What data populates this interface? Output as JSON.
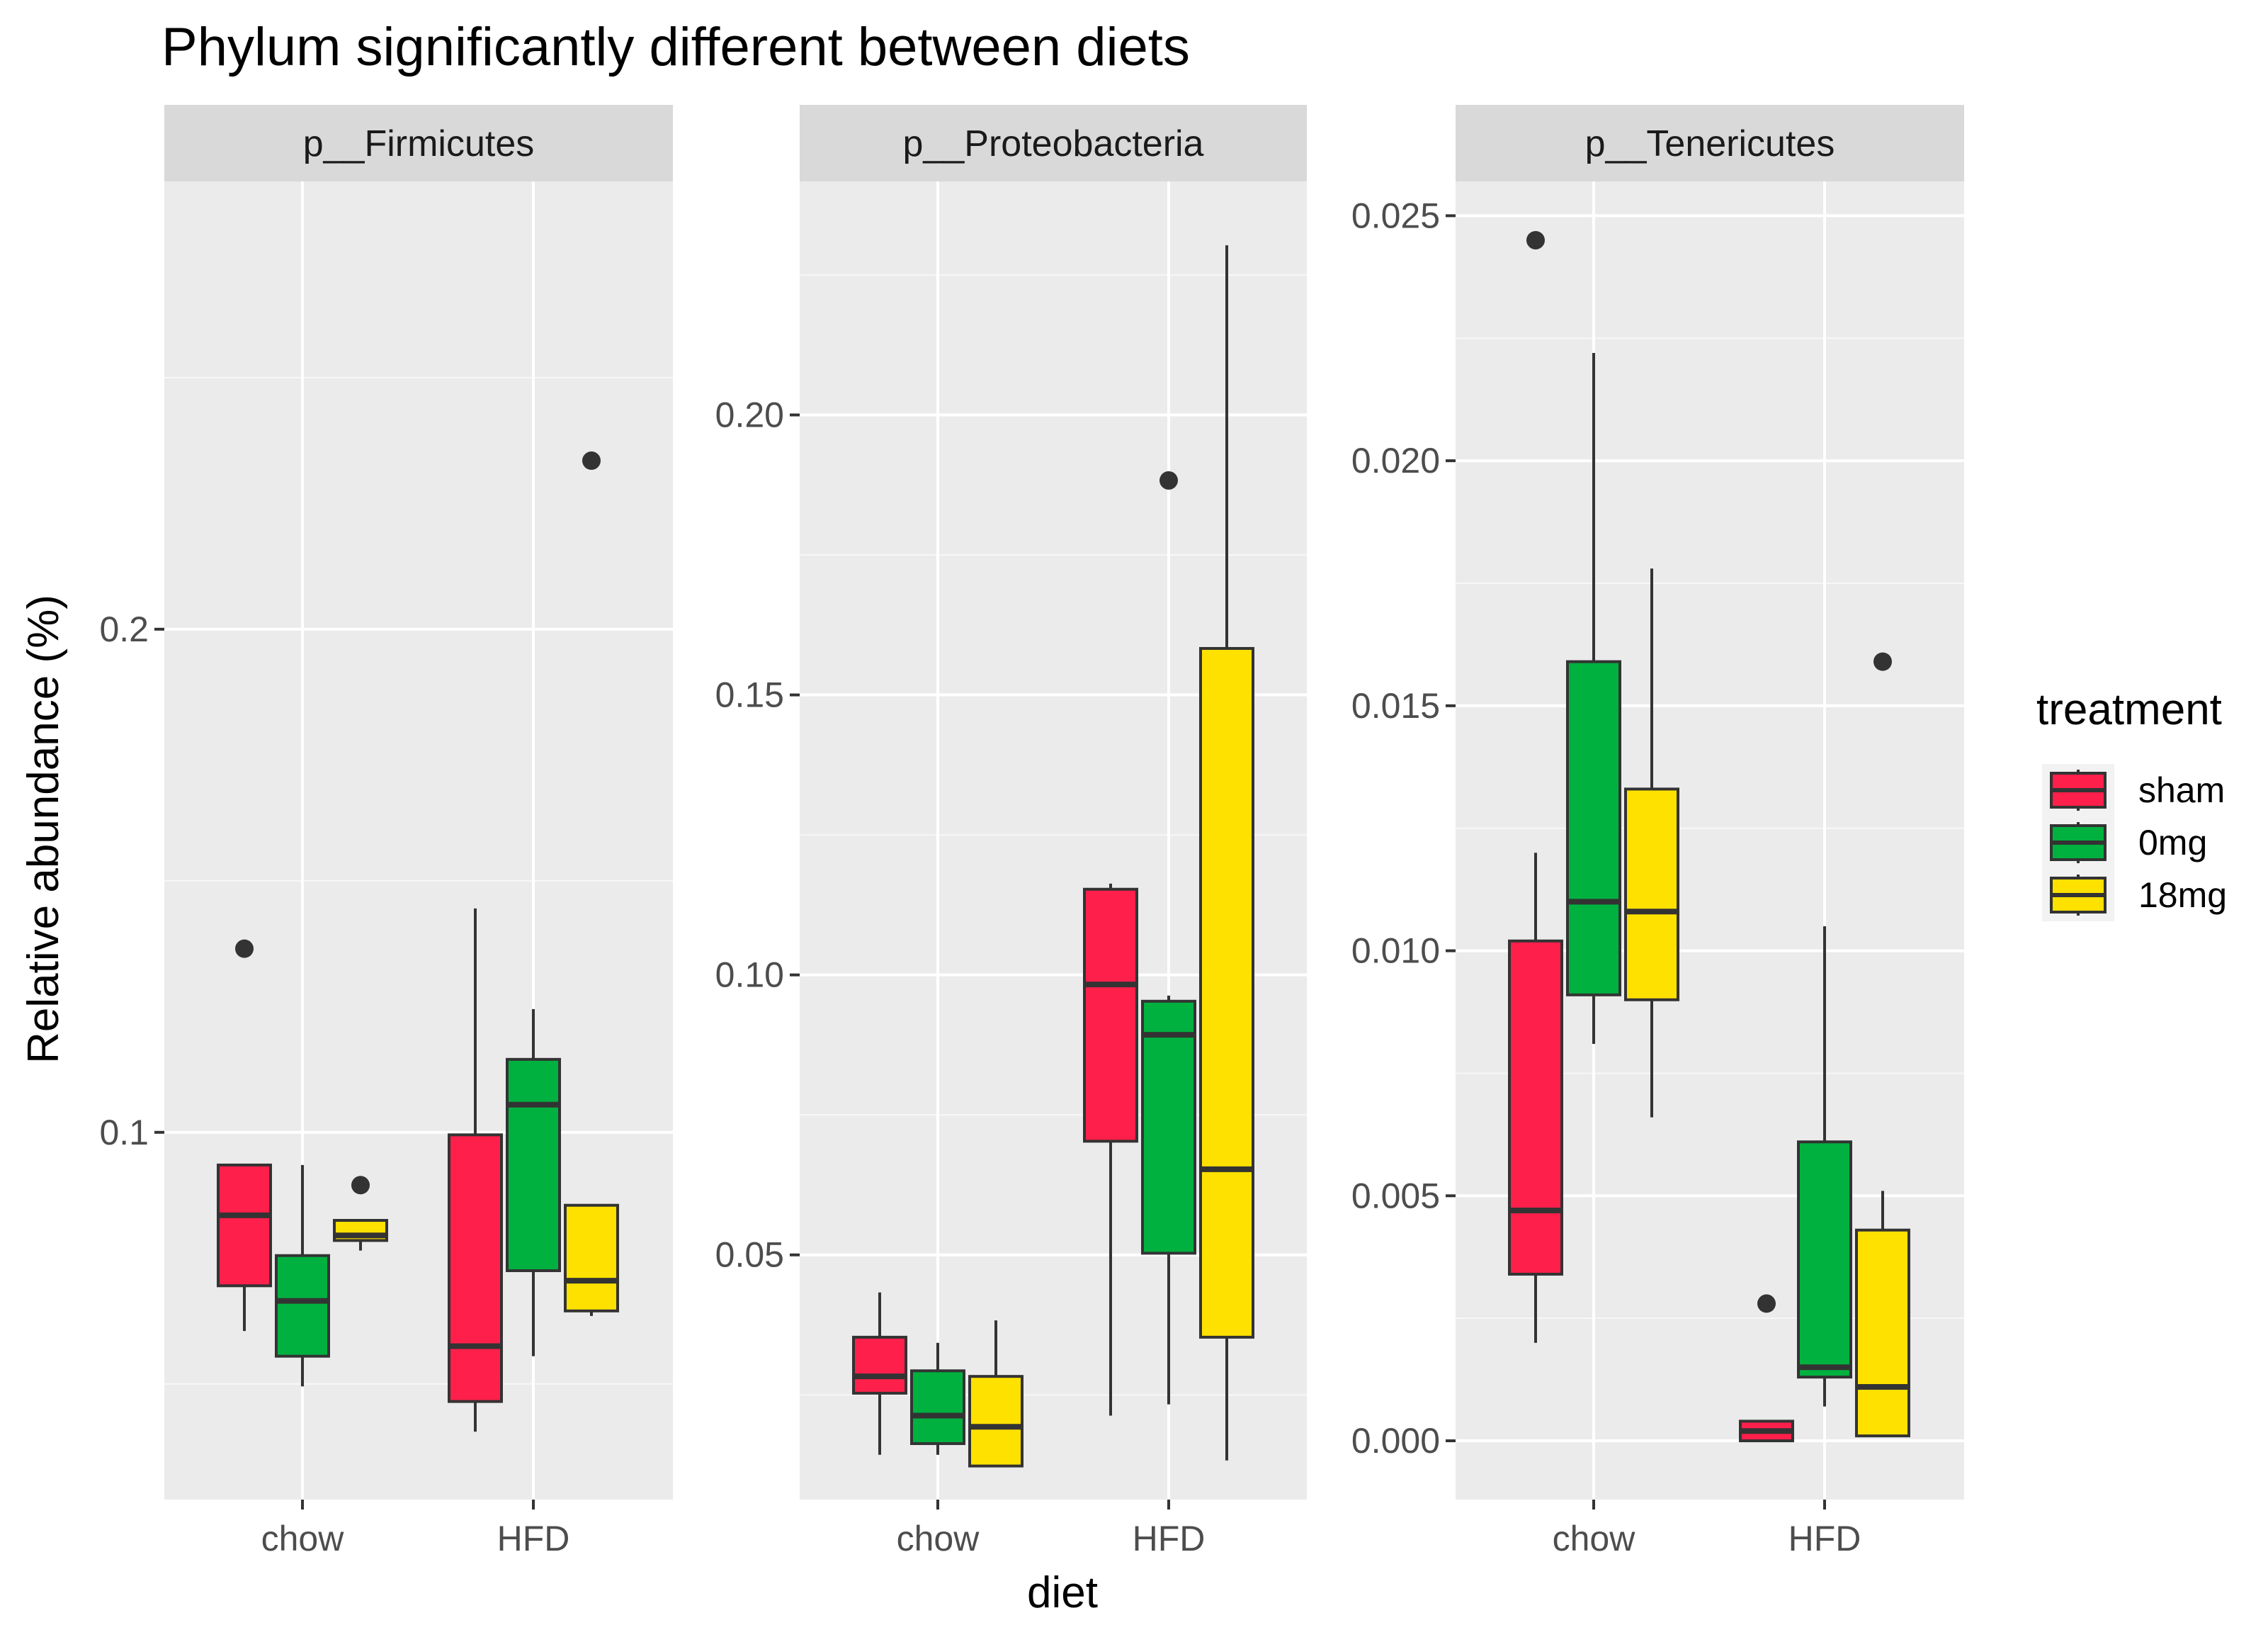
{
  "chart_data": {
    "type": "boxplot",
    "title": "Phylum significantly different between diets",
    "xlabel": "diet",
    "ylabel": "Relative abundance (%)",
    "categories": [
      "chow",
      "HFD"
    ],
    "legend": {
      "title": "treatment",
      "position": "right",
      "items": [
        {
          "name": "sham",
          "color": "#FF1F4B"
        },
        {
          "name": "0mg",
          "color": "#00B140"
        },
        {
          "name": "18mg",
          "color": "#FFE100"
        }
      ]
    },
    "panels": [
      {
        "strip": "p__Firmicutes",
        "ylim": [
          0.027,
          0.289
        ],
        "ticks": [
          {
            "value": 0.1,
            "label": "0.1"
          },
          {
            "value": 0.2,
            "label": "0.2"
          }
        ],
        "minor_ticks": [
          0.05,
          0.15,
          0.25
        ],
        "groups": [
          {
            "category": "chow",
            "treatment": "sham",
            "min": 0.0605,
            "q1": 0.0695,
            "median": 0.0835,
            "q3": 0.0935,
            "max": 0.0935,
            "outliers": [
              0.1365
            ]
          },
          {
            "category": "chow",
            "treatment": "0mg",
            "min": 0.0495,
            "q1": 0.0555,
            "median": 0.0665,
            "q3": 0.0755,
            "max": 0.0935,
            "outliers": []
          },
          {
            "category": "chow",
            "treatment": "18mg",
            "min": 0.0765,
            "q1": 0.0785,
            "median": 0.0795,
            "q3": 0.0825,
            "max": 0.0825,
            "outliers": [
              0.0895
            ]
          },
          {
            "category": "HFD",
            "treatment": "sham",
            "min": 0.0405,
            "q1": 0.0465,
            "median": 0.0575,
            "q3": 0.0995,
            "max": 0.1445,
            "outliers": []
          },
          {
            "category": "HFD",
            "treatment": "0mg",
            "min": 0.0555,
            "q1": 0.0725,
            "median": 0.1055,
            "q3": 0.1145,
            "max": 0.1245,
            "outliers": []
          },
          {
            "category": "HFD",
            "treatment": "18mg",
            "min": 0.0635,
            "q1": 0.0645,
            "median": 0.0705,
            "q3": 0.0855,
            "max": 0.0855,
            "outliers": [
              0.2335
            ]
          }
        ]
      },
      {
        "strip": "p__Proteobacteria",
        "ylim": [
          0.0063,
          0.2417
        ],
        "ticks": [
          {
            "value": 0.05,
            "label": "0.05"
          },
          {
            "value": 0.1,
            "label": "0.10"
          },
          {
            "value": 0.15,
            "label": "0.15"
          },
          {
            "value": 0.2,
            "label": "0.20"
          }
        ],
        "minor_ticks": [
          0.025,
          0.075,
          0.125,
          0.175,
          0.225
        ],
        "groups": [
          {
            "category": "chow",
            "treatment": "sham",
            "min": 0.0143,
            "q1": 0.0253,
            "median": 0.0283,
            "q3": 0.0353,
            "max": 0.0433,
            "outliers": []
          },
          {
            "category": "chow",
            "treatment": "0mg",
            "min": 0.0143,
            "q1": 0.0163,
            "median": 0.0213,
            "q3": 0.0293,
            "max": 0.0343,
            "outliers": []
          },
          {
            "category": "chow",
            "treatment": "18mg",
            "min": 0.0123,
            "q1": 0.0123,
            "median": 0.0193,
            "q3": 0.0283,
            "max": 0.0383,
            "outliers": []
          },
          {
            "category": "HFD",
            "treatment": "sham",
            "min": 0.0213,
            "q1": 0.0703,
            "median": 0.0983,
            "q3": 0.1153,
            "max": 0.1163,
            "outliers": []
          },
          {
            "category": "HFD",
            "treatment": "0mg",
            "min": 0.0233,
            "q1": 0.0503,
            "median": 0.0893,
            "q3": 0.0953,
            "max": 0.0963,
            "outliers": [
              0.1883
            ]
          },
          {
            "category": "HFD",
            "treatment": "18mg",
            "min": 0.0133,
            "q1": 0.0353,
            "median": 0.0653,
            "q3": 0.1583,
            "max": 0.2303,
            "outliers": []
          }
        ]
      },
      {
        "strip": "p__Tenericutes",
        "ylim": [
          -0.0012,
          0.0257
        ],
        "ticks": [
          {
            "value": 0.0,
            "label": "0.000"
          },
          {
            "value": 0.005,
            "label": "0.005"
          },
          {
            "value": 0.01,
            "label": "0.010"
          },
          {
            "value": 0.015,
            "label": "0.015"
          },
          {
            "value": 0.02,
            "label": "0.020"
          },
          {
            "value": 0.025,
            "label": "0.025"
          }
        ],
        "minor_ticks": [
          0.0025,
          0.0075,
          0.0125,
          0.0175,
          0.0225
        ],
        "groups": [
          {
            "category": "chow",
            "treatment": "sham",
            "min": 0.002,
            "q1": 0.0034,
            "median": 0.0047,
            "q3": 0.0102,
            "max": 0.012,
            "outliers": [
              0.0245
            ]
          },
          {
            "category": "chow",
            "treatment": "0mg",
            "min": 0.0081,
            "q1": 0.0091,
            "median": 0.011,
            "q3": 0.0159,
            "max": 0.0222,
            "outliers": []
          },
          {
            "category": "chow",
            "treatment": "18mg",
            "min": 0.0066,
            "q1": 0.009,
            "median": 0.0108,
            "q3": 0.0133,
            "max": 0.0178,
            "outliers": []
          },
          {
            "category": "HFD",
            "treatment": "sham",
            "min": 0.0,
            "q1": 0.0,
            "median": 0.0002,
            "q3": 0.0004,
            "max": 0.0004,
            "outliers": [
              0.0028
            ]
          },
          {
            "category": "HFD",
            "treatment": "0mg",
            "min": 0.0007,
            "q1": 0.0013,
            "median": 0.0015,
            "q3": 0.0061,
            "max": 0.0105,
            "outliers": []
          },
          {
            "category": "HFD",
            "treatment": "18mg",
            "min": 0.0001,
            "q1": 0.0001,
            "median": 0.0011,
            "q3": 0.0043,
            "max": 0.0051,
            "outliers": [
              0.0159
            ]
          }
        ]
      }
    ]
  }
}
